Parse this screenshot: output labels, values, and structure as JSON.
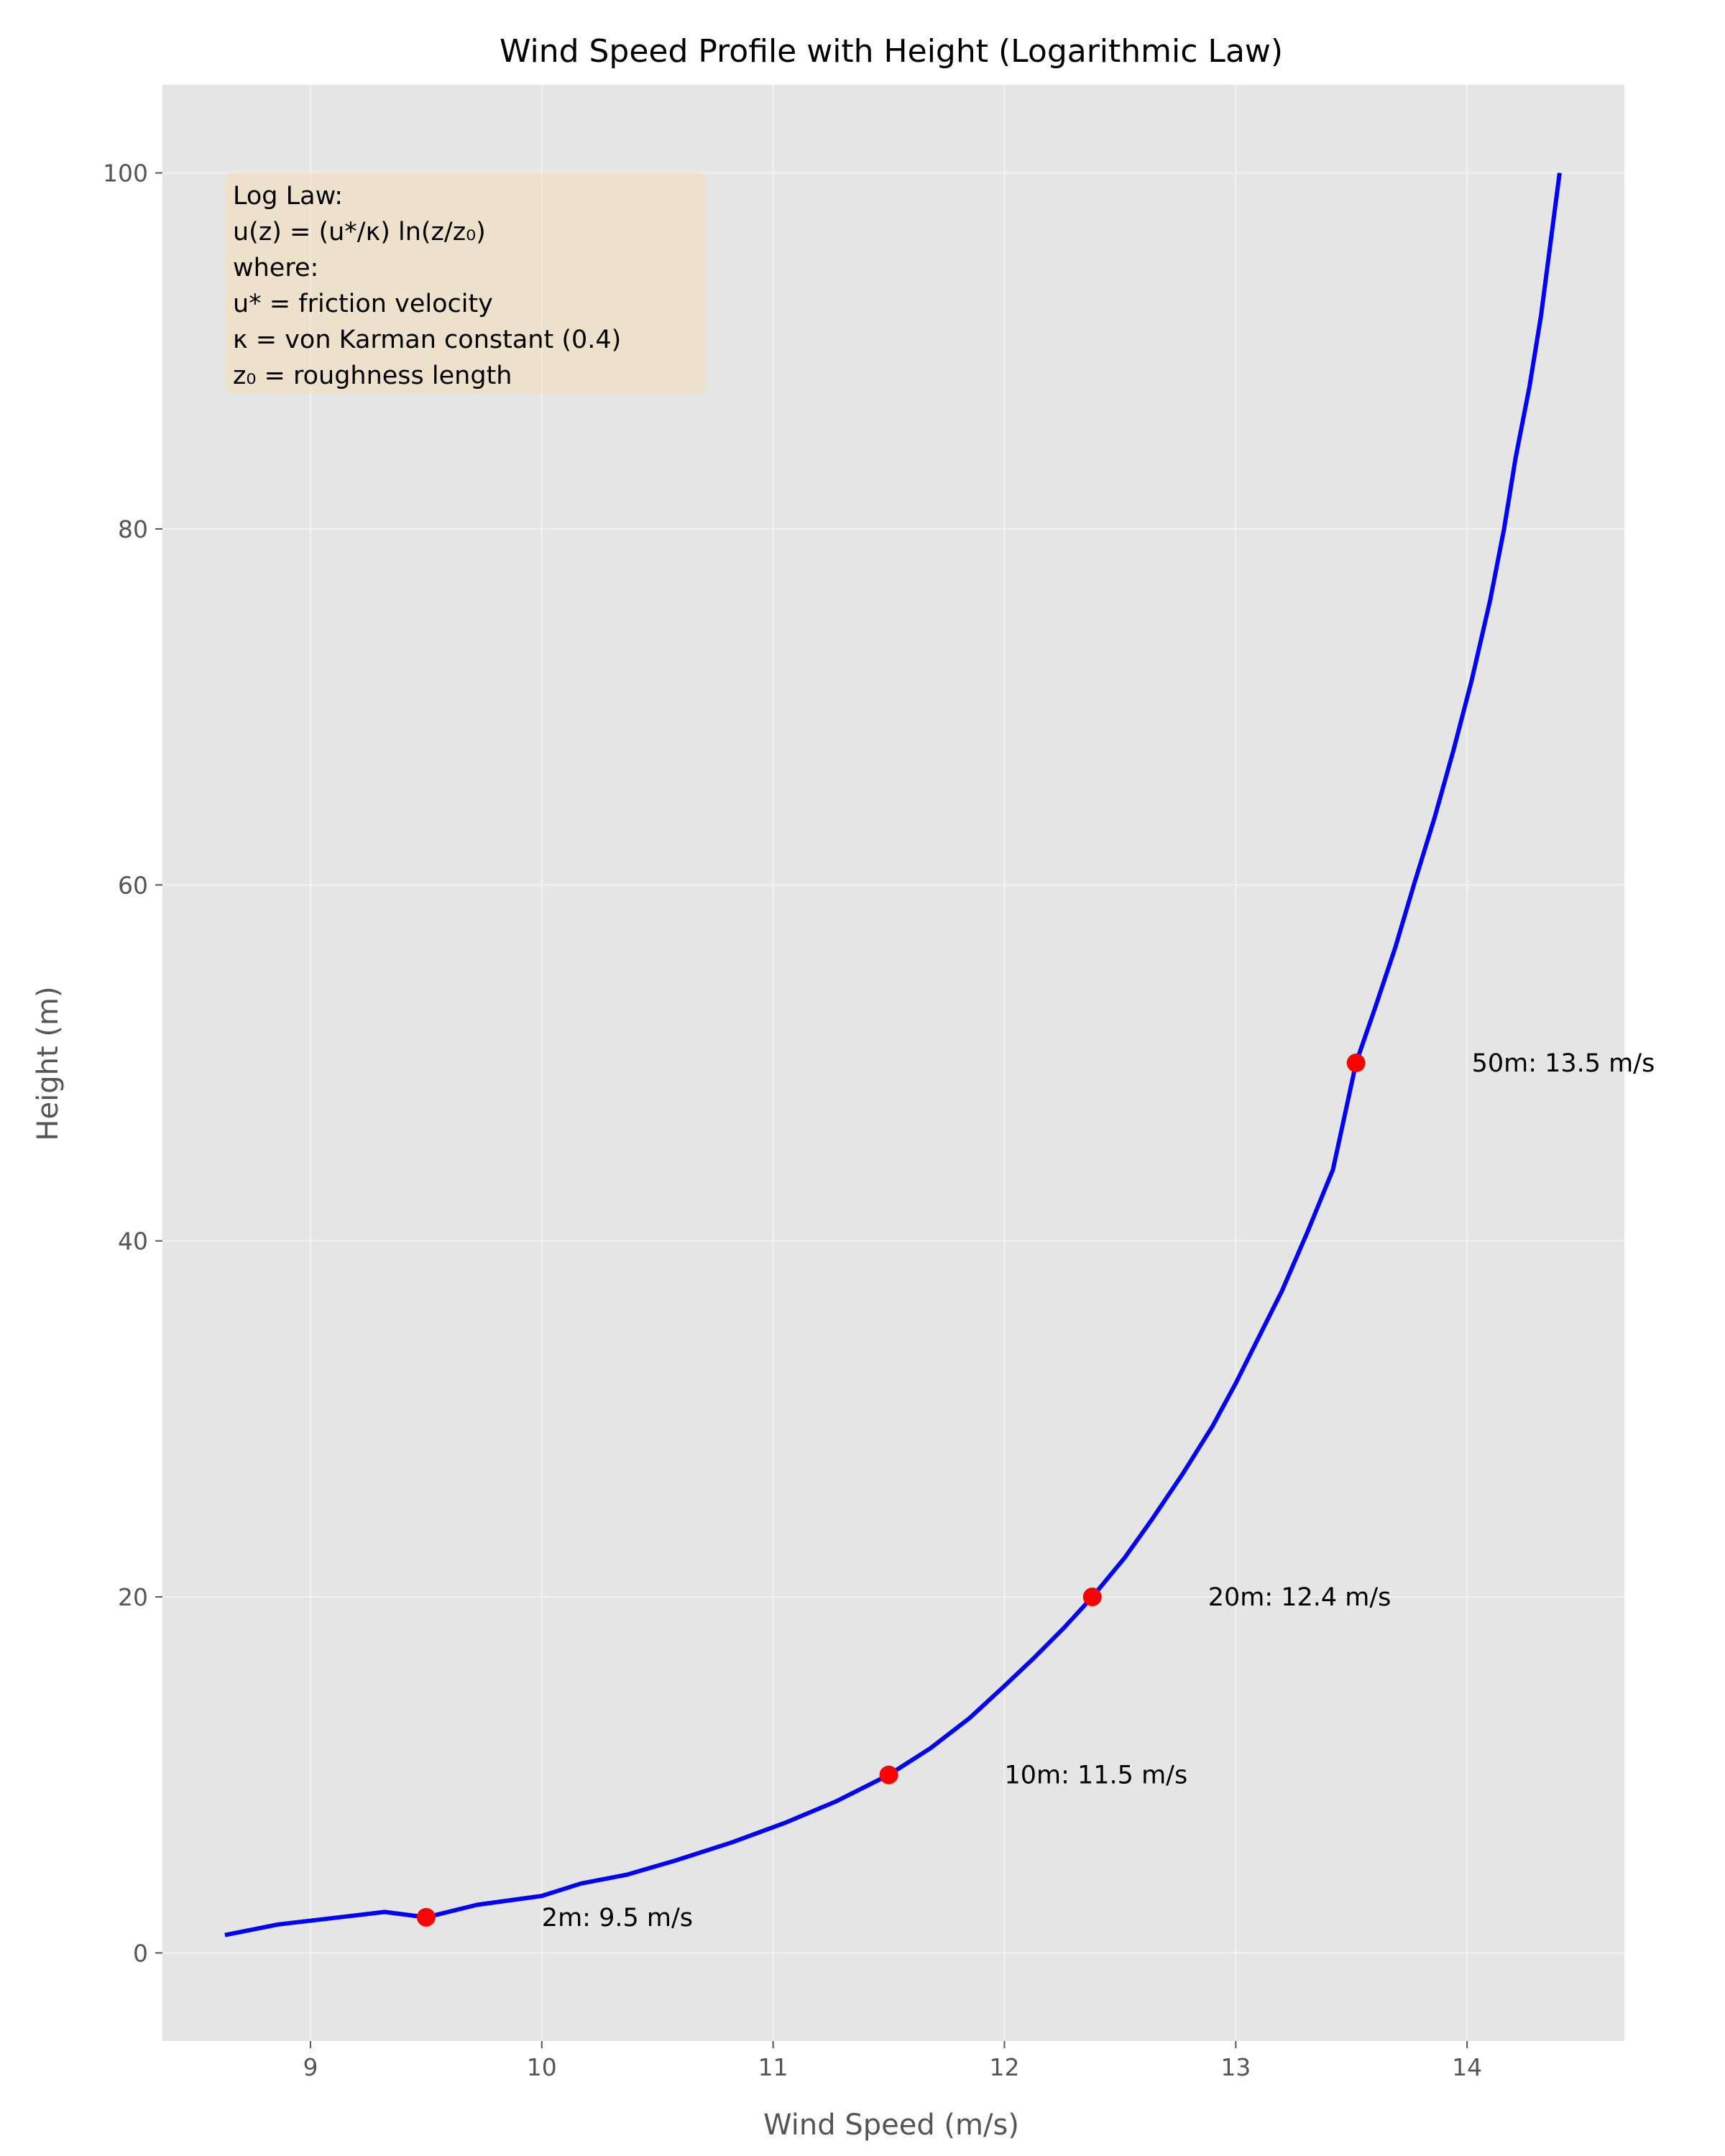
{
  "chart_data": {
    "type": "line",
    "title": "Wind Speed Profile with Height (Logarithmic Law)",
    "xlabel": "Wind Speed (m/s)",
    "ylabel": "Height (m)",
    "xlim": [
      8.36,
      14.68
    ],
    "ylim": [
      -4.95,
      104.95
    ],
    "xticks": [
      9,
      10,
      11,
      12,
      13,
      14
    ],
    "yticks": [
      0,
      20,
      40,
      60,
      80,
      100
    ],
    "grid": true,
    "colors": {
      "line": "#0000ff",
      "marker": "#ff0000",
      "plot_bg": "#e5e5e5",
      "grid": "#f2f2f2",
      "box": "#f5deb3"
    },
    "series": [
      {
        "x": [
          8.63,
          8.86,
          9.06,
          9.32,
          9.5,
          9.72,
          10.0,
          10.17,
          10.37,
          10.58,
          10.82,
          11.05,
          11.27,
          11.5,
          11.68,
          11.85,
          12.0,
          12.13,
          12.26,
          12.38,
          12.52,
          12.64,
          12.77,
          12.9,
          13.0,
          13.1,
          13.2,
          13.31,
          13.42,
          13.52,
          13.6,
          13.69,
          13.77,
          13.86,
          13.94,
          14.02,
          14.1,
          14.16,
          14.21,
          14.27,
          14.32,
          14.36,
          14.4
        ],
        "y": [
          1,
          1.6,
          1.9,
          2.3,
          2.0,
          2.7,
          3.2,
          3.9,
          4.4,
          5.2,
          6.2,
          7.3,
          8.5,
          10.0,
          11.5,
          13.2,
          15.0,
          16.6,
          18.3,
          20.0,
          22.2,
          24.4,
          26.9,
          29.6,
          32.0,
          34.6,
          37.2,
          40.5,
          44.0,
          50.0,
          53.0,
          56.5,
          60.0,
          63.8,
          67.5,
          71.5,
          76.0,
          80.0,
          84.0,
          88.0,
          92.0,
          96.0,
          100.0
        ]
      }
    ],
    "points": [
      {
        "x": 9.5,
        "y": 2,
        "label": "2m: 9.5 m/s"
      },
      {
        "x": 11.5,
        "y": 10,
        "label": "10m: 11.5 m/s"
      },
      {
        "x": 12.38,
        "y": 20,
        "label": "20m: 12.4 m/s"
      },
      {
        "x": 13.52,
        "y": 50,
        "label": "50m: 13.5 m/s"
      }
    ],
    "annotation_box": [
      "Log Law:",
      "u(z) = (u*/κ) ln(z/z₀)",
      "where:",
      "u* = friction velocity",
      "κ = von Karman constant (0.4)",
      "z₀ = roughness length"
    ]
  }
}
